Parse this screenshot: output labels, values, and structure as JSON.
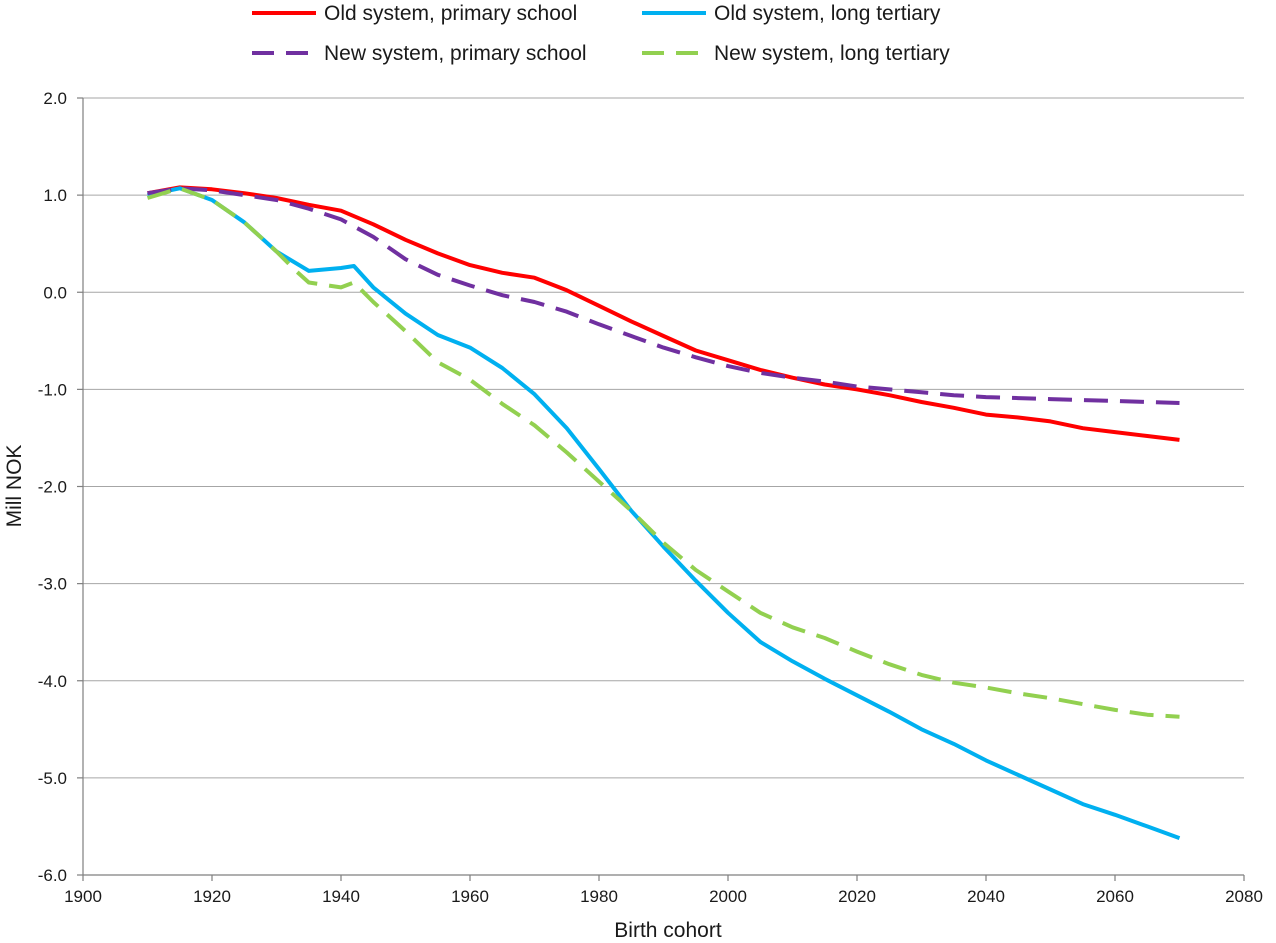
{
  "chart_data": {
    "type": "line",
    "xlabel": "Birth cohort",
    "ylabel": "Mill NOK",
    "xlim": [
      1900,
      2080
    ],
    "ylim": [
      -6.0,
      2.0
    ],
    "x_ticks": [
      "1900",
      "1920",
      "1940",
      "1960",
      "1980",
      "2000",
      "2020",
      "2040",
      "2060",
      "2080"
    ],
    "y_ticks": [
      "2.0",
      "1.0",
      "0.0",
      "-1.0",
      "-2.0",
      "-3.0",
      "-4.0",
      "-5.0",
      "-6.0"
    ],
    "grid": "horizontal",
    "legend_position": "top",
    "series": [
      {
        "name": "Old system, primary school",
        "color": "#ff0000",
        "dash": "solid",
        "x": [
          1910,
          1915,
          1920,
          1925,
          1930,
          1935,
          1940,
          1945,
          1950,
          1955,
          1960,
          1965,
          1970,
          1975,
          1980,
          1985,
          1990,
          1995,
          2000,
          2005,
          2010,
          2015,
          2020,
          2025,
          2030,
          2035,
          2040,
          2045,
          2050,
          2055,
          2060,
          2065,
          2070
        ],
        "y": [
          1.02,
          1.08,
          1.06,
          1.02,
          0.97,
          0.9,
          0.84,
          0.7,
          0.54,
          0.4,
          0.28,
          0.2,
          0.15,
          0.02,
          -0.14,
          -0.3,
          -0.45,
          -0.6,
          -0.7,
          -0.8,
          -0.88,
          -0.95,
          -1.0,
          -1.06,
          -1.13,
          -1.19,
          -1.26,
          -1.29,
          -1.33,
          -1.4,
          -1.44,
          -1.48,
          -1.52
        ]
      },
      {
        "name": "Old system, long tertiary",
        "color": "#00b0f0",
        "dash": "solid",
        "x": [
          1910,
          1915,
          1920,
          1925,
          1930,
          1935,
          1940,
          1942,
          1945,
          1950,
          1955,
          1960,
          1965,
          1970,
          1975,
          1980,
          1985,
          1990,
          1995,
          2000,
          2005,
          2010,
          2015,
          2020,
          2025,
          2030,
          2035,
          2040,
          2045,
          2050,
          2055,
          2060,
          2065,
          2070
        ],
        "y": [
          1.0,
          1.07,
          0.95,
          0.72,
          0.42,
          0.22,
          0.25,
          0.27,
          0.05,
          -0.22,
          -0.44,
          -0.57,
          -0.78,
          -1.05,
          -1.4,
          -1.82,
          -2.25,
          -2.62,
          -2.97,
          -3.3,
          -3.6,
          -3.8,
          -3.98,
          -4.15,
          -4.32,
          -4.5,
          -4.65,
          -4.82,
          -4.97,
          -5.12,
          -5.27,
          -5.38,
          -5.5,
          -5.62
        ]
      },
      {
        "name": "New system, primary school",
        "color": "#7030a0",
        "dash": "dashed",
        "x": [
          1910,
          1915,
          1920,
          1925,
          1930,
          1935,
          1940,
          1945,
          1950,
          1955,
          1960,
          1965,
          1970,
          1975,
          1980,
          1985,
          1990,
          1995,
          2000,
          2005,
          2010,
          2015,
          2020,
          2025,
          2030,
          2035,
          2040,
          2045,
          2050,
          2055,
          2060,
          2065,
          2070
        ],
        "y": [
          1.02,
          1.07,
          1.05,
          1.0,
          0.95,
          0.86,
          0.75,
          0.57,
          0.34,
          0.18,
          0.07,
          -0.03,
          -0.1,
          -0.2,
          -0.33,
          -0.45,
          -0.57,
          -0.67,
          -0.76,
          -0.83,
          -0.88,
          -0.92,
          -0.97,
          -1.0,
          -1.03,
          -1.06,
          -1.08,
          -1.09,
          -1.1,
          -1.11,
          -1.12,
          -1.13,
          -1.14
        ]
      },
      {
        "name": "New system, long tertiary",
        "color": "#92d050",
        "dash": "dashed",
        "x": [
          1910,
          1915,
          1920,
          1925,
          1930,
          1933,
          1935,
          1940,
          1942,
          1945,
          1950,
          1955,
          1960,
          1965,
          1970,
          1975,
          1980,
          1985,
          1990,
          1995,
          2000,
          2005,
          2010,
          2015,
          2020,
          2025,
          2030,
          2035,
          2040,
          2045,
          2050,
          2055,
          2060,
          2065,
          2070
        ],
        "y": [
          0.97,
          1.07,
          0.95,
          0.72,
          0.42,
          0.22,
          0.1,
          0.05,
          0.1,
          -0.1,
          -0.4,
          -0.72,
          -0.9,
          -1.15,
          -1.37,
          -1.65,
          -1.95,
          -2.25,
          -2.58,
          -2.86,
          -3.08,
          -3.3,
          -3.45,
          -3.56,
          -3.7,
          -3.83,
          -3.94,
          -4.02,
          -4.07,
          -4.13,
          -4.18,
          -4.24,
          -4.3,
          -4.35,
          -4.37
        ]
      }
    ]
  }
}
